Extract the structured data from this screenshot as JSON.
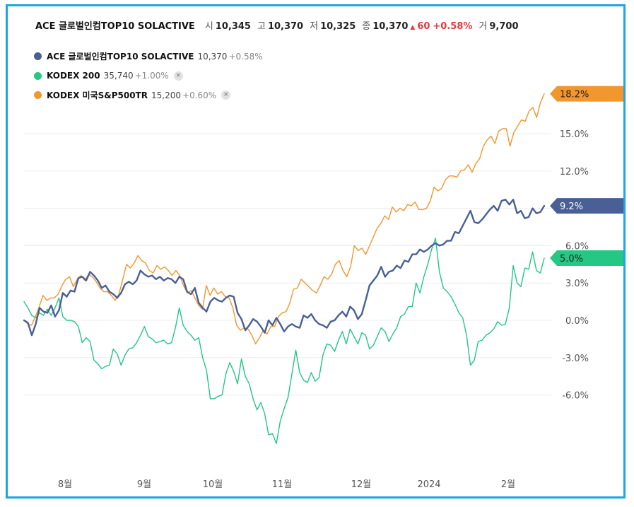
{
  "header": {
    "title": "ACE 글로벌인컴TOP10 SOLACTIVE",
    "open_label": "시",
    "open": "10,345",
    "high_label": "고",
    "high": "10,370",
    "low_label": "저",
    "low": "10,325",
    "close_label": "종",
    "close": "10,370",
    "change_arrow": "▲",
    "change": "60",
    "change_pct": "+0.58%",
    "volume_label": "거",
    "volume": "9,700"
  },
  "legend": [
    {
      "name": "ACE 글로벌인컴TOP10 SOLACTIVE",
      "value": "10,370",
      "change": "+0.58%",
      "color": "#4a5f96",
      "removable": false
    },
    {
      "name": "KODEX 200",
      "value": "35,740",
      "change": "+1.00%",
      "color": "#24c784",
      "removable": true,
      "close_icon": "×"
    },
    {
      "name": "KODEX 미국S&P500TR",
      "value": "15,200",
      "change": "+0.60%",
      "color": "#f2962e",
      "removable": true,
      "close_icon": "×"
    }
  ],
  "chart_data": {
    "type": "line",
    "y_ticks": [
      "15.0%",
      "12.0%",
      "9.0%",
      "6.0%",
      "3.0%",
      "0.0%",
      "-3.0%",
      "-6.0%"
    ],
    "y_tick_values": [
      15,
      12,
      9,
      6,
      3,
      0,
      -3,
      -6
    ],
    "x_ticks": [
      "8월",
      "9월",
      "10월",
      "11월",
      "12월",
      "2024",
      "2월"
    ],
    "grid": true,
    "end_labels": [
      {
        "series": "KODEX 미국S&P500TR",
        "text": "18.2%",
        "color": "#f2962e"
      },
      {
        "series": "ACE 글로벌인컴TOP10 SOLACTIVE",
        "text": "9.2%",
        "color": "#4a5f96"
      },
      {
        "series": "KODEX 200",
        "text": "5.0%",
        "color": "#24c784"
      }
    ],
    "series": [
      {
        "name": "ACE 글로벌인컴TOP10 SOLACTIVE",
        "color": "#4a5f96",
        "width": 2.4,
        "values": [
          0.0,
          -0.2,
          -1.2,
          -0.3,
          1.0,
          0.7,
          0.6,
          1.2,
          0.3,
          0.8,
          2.2,
          1.9,
          2.4,
          2.3,
          3.4,
          3.5,
          3.2,
          3.9,
          3.6,
          3.2,
          2.6,
          2.8,
          2.3,
          2.1,
          1.8,
          2.2,
          2.9,
          3.1,
          2.9,
          3.2,
          4.0,
          3.7,
          3.5,
          3.6,
          3.3,
          3.5,
          3.2,
          3.4,
          3.3,
          3.0,
          3.5,
          3.3,
          2.3,
          2.1,
          2.6,
          1.4,
          1.0,
          0.7,
          1.5,
          1.8,
          1.6,
          1.5,
          1.8,
          2.0,
          1.9,
          0.6,
          0.1,
          -0.8,
          -0.4,
          0.1,
          -0.1,
          -0.5,
          -1.0,
          0.0,
          -0.4,
          0.2,
          -0.3,
          -0.9,
          -0.5,
          -0.3,
          -0.5,
          -0.6,
          0.4,
          0.2,
          0.5,
          0.0,
          -0.3,
          -0.4,
          -0.6,
          -0.1,
          0.0,
          0.4,
          0.7,
          0.3,
          1.1,
          0.8,
          0.1,
          0.5,
          1.6,
          2.8,
          3.2,
          3.6,
          4.3,
          3.5,
          3.9,
          4.0,
          4.4,
          4.2,
          4.8,
          4.7,
          5.3,
          5.3,
          5.7,
          5.5,
          5.7,
          6.0,
          6.2,
          6.0,
          6.1,
          6.4,
          6.4,
          7.1,
          7.0,
          7.6,
          8.2,
          8.8,
          7.9,
          7.8,
          8.1,
          8.5,
          8.9,
          9.2,
          8.8,
          9.6,
          9.7,
          9.3,
          9.7,
          8.6,
          8.8,
          8.2,
          8.3,
          9.0,
          8.6,
          8.7,
          9.2
        ]
      },
      {
        "name": "KODEX 200",
        "color": "#24c784",
        "width": 1.4,
        "values": [
          1.5,
          1.0,
          0.4,
          0.2,
          0.6,
          0.4,
          0.9,
          0.4,
          1.0,
          1.8,
          0.3,
          0.0,
          0.0,
          -0.1,
          -0.5,
          -1.8,
          -1.4,
          -1.7,
          -3.2,
          -3.5,
          -3.9,
          -3.7,
          -3.6,
          -2.3,
          -2.7,
          -3.6,
          -2.8,
          -2.3,
          -2.2,
          -1.8,
          -1.2,
          -0.5,
          -1.3,
          -1.5,
          -1.8,
          -1.7,
          -1.6,
          -1.9,
          -1.8,
          -0.6,
          1.0,
          -0.4,
          -0.9,
          -1.2,
          -1.6,
          -1.4,
          -3.0,
          -4.0,
          -6.3,
          -6.3,
          -6.1,
          -6.0,
          -4.3,
          -3.4,
          -4.1,
          -5.1,
          -3.1,
          -4.5,
          -5.1,
          -6.3,
          -7.2,
          -6.6,
          -7.5,
          -9.2,
          -9.1,
          -9.9,
          -8.1,
          -7.1,
          -6.2,
          -4.3,
          -2.4,
          -4.2,
          -4.8,
          -5.0,
          -4.2,
          -4.9,
          -4.6,
          -2.8,
          -1.9,
          -2.0,
          -2.5,
          -1.6,
          -0.9,
          -1.9,
          -0.7,
          -1.3,
          -1.9,
          -1.0,
          -1.2,
          -2.3,
          -2.0,
          -1.3,
          -0.6,
          -0.9,
          -1.7,
          -1.1,
          -0.6,
          0.3,
          0.5,
          1.1,
          1.1,
          3.0,
          2.2,
          3.5,
          4.5,
          5.7,
          6.6,
          3.9,
          2.6,
          2.3,
          1.9,
          1.3,
          0.6,
          0.2,
          -1.2,
          -3.6,
          -3.2,
          -1.7,
          -1.6,
          -1.2,
          -1.0,
          -0.7,
          -0.1,
          -0.4,
          -0.3,
          1.0,
          4.4,
          3.0,
          2.7,
          4.2,
          4.1,
          5.5,
          4.0,
          3.8,
          5.0
        ]
      },
      {
        "name": "KODEX 미국S&P500TR",
        "color": "#f2962e",
        "width": 1.4,
        "values": [
          0.0,
          -0.3,
          -0.4,
          0.3,
          1.1,
          2.0,
          1.6,
          1.8,
          1.8,
          2.1,
          2.8,
          3.3,
          3.5,
          2.7,
          3.3,
          3.6,
          3.2,
          3.7,
          3.5,
          3.1,
          2.6,
          2.3,
          2.3,
          2.0,
          1.6,
          2.1,
          3.3,
          4.5,
          4.2,
          4.6,
          5.2,
          4.8,
          4.6,
          4.0,
          3.8,
          4.4,
          4.1,
          4.3,
          4.0,
          3.6,
          4.0,
          3.6,
          2.8,
          2.2,
          2.4,
          1.8,
          1.2,
          0.9,
          2.8,
          2.0,
          2.6,
          2.1,
          2.3,
          1.9,
          1.8,
          1.0,
          -0.4,
          -0.8,
          -0.6,
          -0.7,
          -1.2,
          -1.9,
          -1.4,
          -0.8,
          -1.1,
          -0.5,
          -0.5,
          0.3,
          0.6,
          0.7,
          1.4,
          2.5,
          2.6,
          3.3,
          3.0,
          2.7,
          2.4,
          2.2,
          2.8,
          3.5,
          3.3,
          3.7,
          4.5,
          4.8,
          4.0,
          3.5,
          4.3,
          6.0,
          5.6,
          5.8,
          5.3,
          6.0,
          6.7,
          7.4,
          7.8,
          8.4,
          8.1,
          9.1,
          8.7,
          9.0,
          8.8,
          9.3,
          9.2,
          9.5,
          8.9,
          8.9,
          9.0,
          9.6,
          10.7,
          10.4,
          10.6,
          11.3,
          11.6,
          11.6,
          11.5,
          12.0,
          12.1,
          12.5,
          11.9,
          12.6,
          13.0,
          14.0,
          14.5,
          14.8,
          14.2,
          15.2,
          15.4,
          15.4,
          14.0,
          15.1,
          15.6,
          16.1,
          16.0,
          16.8,
          17.1,
          16.3,
          17.5,
          18.2
        ]
      }
    ]
  }
}
